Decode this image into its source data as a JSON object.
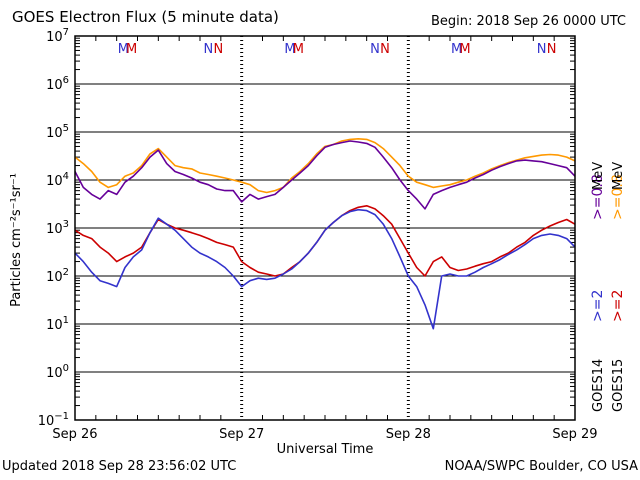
{
  "header": {
    "title": "GOES Electron Flux (5 minute data)",
    "begin": "Begin: 2018 Sep 26 0000 UTC"
  },
  "footer": {
    "updated": "Updated 2018 Sep 28 23:56:02 UTC",
    "credit": "NOAA/SWPC Boulder, CO USA"
  },
  "chart_data": {
    "type": "line",
    "title": "GOES Electron Flux (5 minute data)",
    "xlabel": "Universal Time",
    "ylabel": "Particles cm⁻²s⁻¹sr⁻¹",
    "yscale": "log",
    "ylim": [
      0.1,
      10000000
    ],
    "xlim": [
      0,
      3
    ],
    "x_units": "days since 2018 Sep 26 0000 UTC",
    "x_ticks": [
      {
        "value": 0,
        "label": "Sep 26"
      },
      {
        "value": 1,
        "label": "Sep 27"
      },
      {
        "value": 2,
        "label": "Sep 28"
      },
      {
        "value": 3,
        "label": "Sep 29"
      }
    ],
    "y_ticks": [
      {
        "exp": -1,
        "label": "10"
      },
      {
        "exp": 0,
        "label": "10"
      },
      {
        "exp": 1,
        "label": "10"
      },
      {
        "exp": 2,
        "label": "10"
      },
      {
        "exp": 3,
        "label": "10"
      },
      {
        "exp": 4,
        "label": "10"
      },
      {
        "exp": 5,
        "label": "10"
      },
      {
        "exp": 6,
        "label": "10"
      },
      {
        "exp": 7,
        "label": "10"
      }
    ],
    "threshold": {
      "value": 1000,
      "style": "dashed"
    },
    "midnight_markers": [
      {
        "day": 0,
        "values": [
          {
            "text": "M",
            "color": "#3333cc",
            "x": 0.29
          },
          {
            "text": "M",
            "color": "#cc0000",
            "x": 0.34
          },
          {
            "text": "N",
            "color": "#3333cc",
            "x": 0.8
          },
          {
            "text": "N",
            "color": "#cc0000",
            "x": 0.86
          }
        ]
      },
      {
        "day": 1,
        "values": [
          {
            "text": "M",
            "color": "#3333cc",
            "x": 1.29
          },
          {
            "text": "M",
            "color": "#cc0000",
            "x": 1.34
          },
          {
            "text": "N",
            "color": "#3333cc",
            "x": 1.8
          },
          {
            "text": "N",
            "color": "#cc0000",
            "x": 1.86
          }
        ]
      },
      {
        "day": 2,
        "values": [
          {
            "text": "M",
            "color": "#3333cc",
            "x": 2.29
          },
          {
            "text": "M",
            "color": "#cc0000",
            "x": 2.34
          },
          {
            "text": "N",
            "color": "#3333cc",
            "x": 2.8
          },
          {
            "text": "N",
            "color": "#cc0000",
            "x": 2.86
          }
        ]
      }
    ],
    "legend": {
      "placement": "right",
      "groups": [
        {
          "satellite": "GOES14",
          "entries": [
            {
              "label": ">=2",
              "unit": "MeV",
              "color": "#3333cc"
            },
            {
              "label": ">=0.8",
              "unit": "MeV",
              "color": "#660099"
            }
          ]
        },
        {
          "satellite": "GOES15",
          "entries": [
            {
              "label": ">=2",
              "unit": "MeV",
              "color": "#cc0000"
            },
            {
              "label": ">=0.8",
              "unit": "MeV",
              "color": "#ff9900"
            }
          ]
        }
      ],
      "unit_label": "MeV"
    },
    "series": [
      {
        "name": "GOES15 >=0.8 MeV",
        "color": "#ff9900",
        "x": [
          0.0,
          0.05,
          0.1,
          0.15,
          0.2,
          0.25,
          0.3,
          0.35,
          0.4,
          0.45,
          0.5,
          0.55,
          0.6,
          0.65,
          0.7,
          0.75,
          0.8,
          0.85,
          0.9,
          0.95,
          1.0,
          1.05,
          1.1,
          1.15,
          1.2,
          1.25,
          1.3,
          1.35,
          1.4,
          1.45,
          1.5,
          1.55,
          1.6,
          1.65,
          1.7,
          1.75,
          1.8,
          1.85,
          1.9,
          1.95,
          2.0,
          2.05,
          2.1,
          2.15,
          2.2,
          2.25,
          2.3,
          2.35,
          2.4,
          2.45,
          2.5,
          2.55,
          2.6,
          2.65,
          2.7,
          2.75,
          2.8,
          2.85,
          2.9,
          2.95,
          3.0
        ],
        "y": [
          30000,
          22000,
          15000,
          9000,
          7000,
          8000,
          12000,
          14000,
          20000,
          35000,
          45000,
          30000,
          20000,
          18000,
          17000,
          14000,
          13000,
          12000,
          11000,
          10000,
          9000,
          8000,
          6000,
          5500,
          6000,
          7000,
          11000,
          15000,
          22000,
          35000,
          50000,
          55000,
          65000,
          70000,
          72000,
          70000,
          60000,
          45000,
          30000,
          20000,
          12000,
          9000,
          8000,
          7000,
          7500,
          8000,
          9000,
          10000,
          12000,
          14000,
          17000,
          20000,
          23000,
          26000,
          29000,
          31000,
          33000,
          34000,
          33000,
          30000,
          25000
        ]
      },
      {
        "name": "GOES14 >=0.8 MeV",
        "color": "#660099",
        "x": [
          0.0,
          0.05,
          0.1,
          0.15,
          0.2,
          0.25,
          0.3,
          0.35,
          0.4,
          0.45,
          0.5,
          0.55,
          0.6,
          0.65,
          0.7,
          0.75,
          0.8,
          0.85,
          0.9,
          0.95,
          1.0,
          1.05,
          1.1,
          1.15,
          1.2,
          1.25,
          1.3,
          1.35,
          1.4,
          1.45,
          1.5,
          1.55,
          1.6,
          1.65,
          1.7,
          1.75,
          1.8,
          1.85,
          1.9,
          1.95,
          2.0,
          2.05,
          2.1,
          2.15,
          2.2,
          2.25,
          2.3,
          2.35,
          2.4,
          2.45,
          2.5,
          2.55,
          2.6,
          2.65,
          2.7,
          2.75,
          2.8,
          2.85,
          2.9,
          2.95,
          3.0
        ],
        "y": [
          15000,
          7000,
          5000,
          4000,
          6000,
          5000,
          9000,
          12000,
          18000,
          30000,
          42000,
          22000,
          15000,
          13000,
          11000,
          9000,
          8000,
          6500,
          6000,
          6000,
          3500,
          5000,
          4000,
          4500,
          5000,
          7000,
          10000,
          14000,
          20000,
          32000,
          48000,
          55000,
          60000,
          65000,
          62000,
          58000,
          48000,
          30000,
          18000,
          10000,
          6000,
          4000,
          2500,
          5000,
          6000,
          7000,
          8000,
          9000,
          11000,
          13000,
          16000,
          19000,
          22000,
          25000,
          26000,
          25000,
          24000,
          22000,
          20000,
          18000,
          12000
        ]
      },
      {
        "name": "GOES15 >=2 MeV",
        "color": "#cc0000",
        "x": [
          0.0,
          0.05,
          0.1,
          0.15,
          0.2,
          0.25,
          0.3,
          0.35,
          0.4,
          0.45,
          0.5,
          0.55,
          0.6,
          0.65,
          0.7,
          0.75,
          0.8,
          0.85,
          0.9,
          0.95,
          1.0,
          1.05,
          1.1,
          1.15,
          1.2,
          1.25,
          1.3,
          1.35,
          1.4,
          1.45,
          1.5,
          1.55,
          1.6,
          1.65,
          1.7,
          1.75,
          1.8,
          1.85,
          1.9,
          1.95,
          2.0,
          2.05,
          2.1,
          2.15,
          2.2,
          2.25,
          2.3,
          2.35,
          2.4,
          2.45,
          2.5,
          2.55,
          2.6,
          2.65,
          2.7,
          2.75,
          2.8,
          2.85,
          2.9,
          2.95,
          3.0
        ],
        "y": [
          900,
          700,
          600,
          400,
          300,
          200,
          250,
          300,
          400,
          800,
          1500,
          1200,
          1000,
          900,
          800,
          700,
          600,
          500,
          450,
          400,
          200,
          150,
          120,
          110,
          100,
          110,
          150,
          200,
          300,
          500,
          900,
          1300,
          1800,
          2300,
          2700,
          2900,
          2500,
          1800,
          1200,
          600,
          300,
          150,
          100,
          200,
          250,
          150,
          130,
          140,
          160,
          180,
          200,
          250,
          300,
          400,
          500,
          700,
          900,
          1100,
          1300,
          1500,
          1200
        ]
      },
      {
        "name": "GOES14 >=2 MeV",
        "color": "#3333cc",
        "x": [
          0.0,
          0.05,
          0.1,
          0.15,
          0.2,
          0.25,
          0.3,
          0.35,
          0.4,
          0.45,
          0.5,
          0.55,
          0.6,
          0.65,
          0.7,
          0.75,
          0.8,
          0.85,
          0.9,
          0.95,
          1.0,
          1.05,
          1.1,
          1.15,
          1.2,
          1.25,
          1.3,
          1.35,
          1.4,
          1.45,
          1.5,
          1.55,
          1.6,
          1.65,
          1.7,
          1.75,
          1.8,
          1.85,
          1.9,
          1.95,
          2.0,
          2.05,
          2.1,
          2.15,
          2.2,
          2.25,
          2.3,
          2.35,
          2.4,
          2.45,
          2.5,
          2.55,
          2.6,
          2.65,
          2.7,
          2.75,
          2.8,
          2.85,
          2.9,
          2.95,
          3.0
        ],
        "y": [
          300,
          200,
          120,
          80,
          70,
          60,
          150,
          250,
          350,
          800,
          1600,
          1200,
          900,
          600,
          400,
          300,
          250,
          200,
          150,
          100,
          60,
          80,
          90,
          85,
          90,
          110,
          140,
          200,
          300,
          500,
          900,
          1300,
          1800,
          2200,
          2400,
          2300,
          1900,
          1200,
          600,
          250,
          100,
          60,
          25,
          8,
          100,
          110,
          100,
          100,
          120,
          150,
          180,
          220,
          280,
          350,
          450,
          600,
          700,
          750,
          700,
          600,
          400
        ]
      }
    ]
  }
}
